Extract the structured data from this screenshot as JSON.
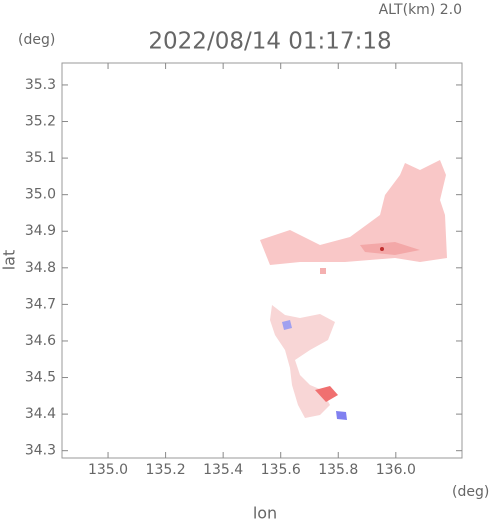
{
  "header": {
    "altitude": "ALT(km) 2.0",
    "y_unit": "(deg)",
    "x_unit": "(deg)"
  },
  "chart_data": {
    "type": "map",
    "title": "2022/08/14 01:17:18",
    "x_label": "lon",
    "y_label": "lat",
    "xlim": [
      134.84,
      136.23
    ],
    "ylim": [
      34.28,
      35.36
    ],
    "xticks": [
      {
        "value": 135,
        "label": "135.0"
      },
      135.2,
      135.4,
      135.6,
      135.8,
      {
        "value": 136,
        "label": "136.0"
      }
    ],
    "yticks": [
      34.3,
      34.4,
      34.5,
      34.6,
      34.7,
      34.8,
      34.9,
      {
        "value": 35,
        "label": "35.0"
      },
      35.1,
      35.2,
      35.3
    ]
  }
}
